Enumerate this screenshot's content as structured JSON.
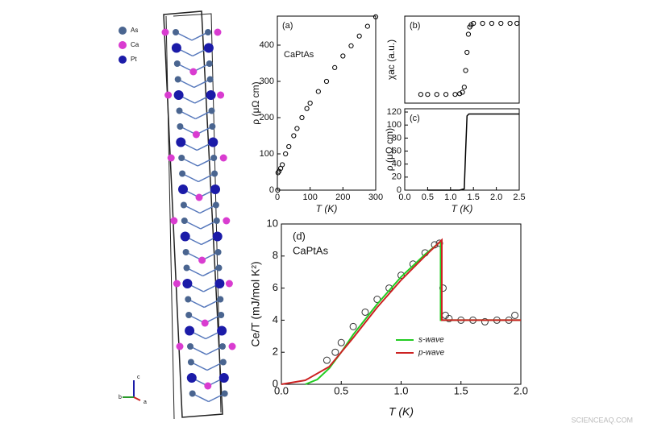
{
  "crystal": {
    "legend": [
      "As",
      "Ca",
      "Pt"
    ],
    "axes": [
      "c",
      "b",
      "a"
    ]
  },
  "watermark": "SCIENCEAQ.COM",
  "chart_data": [
    {
      "type": "scatter",
      "panel_label": "(a)",
      "annotation": "CaPtAs",
      "x_label": "T (K)",
      "y_label": "ρ (μΩ cm)",
      "color": "#000000",
      "x": [
        1,
        2,
        5,
        10,
        15,
        25,
        35,
        50,
        60,
        75,
        90,
        100,
        125,
        150,
        175,
        200,
        225,
        250,
        275,
        300
      ],
      "values": [
        0,
        48,
        52,
        60,
        70,
        100,
        120,
        150,
        170,
        200,
        225,
        240,
        272,
        300,
        338,
        370,
        398,
        425,
        452,
        478
      ],
      "xlim": [
        0,
        300
      ],
      "xticks": [
        0,
        100,
        200,
        300
      ],
      "ylim": [
        0,
        480
      ],
      "yticks": [
        0,
        100,
        200,
        300,
        400
      ]
    },
    {
      "type": "scatter",
      "panel_label": "(b)",
      "y_label": "χac (a.u.)",
      "color": "#000000",
      "x": [
        0.35,
        0.5,
        0.7,
        0.9,
        1.1,
        1.2,
        1.26,
        1.3,
        1.33,
        1.36,
        1.39,
        1.42,
        1.45,
        1.5,
        1.7,
        1.9,
        2.1,
        2.3,
        2.45
      ],
      "values": [
        0.02,
        0.02,
        0.02,
        0.02,
        0.02,
        0.03,
        0.05,
        0.12,
        0.35,
        0.6,
        0.85,
        0.95,
        0.98,
        1,
        1,
        1,
        1,
        1,
        1
      ],
      "xlim": [
        0,
        2.5
      ],
      "ylim": [
        -0.1,
        1.1
      ]
    },
    {
      "type": "line",
      "panel_label": "(c)",
      "x_label": "T (K)",
      "y_label": "ρ (μΩ cm)",
      "color": "#000000",
      "x": [
        0.5,
        0.8,
        1.0,
        1.2,
        1.3,
        1.33,
        1.36,
        1.4,
        1.6,
        2.0,
        2.5
      ],
      "values": [
        0,
        0,
        0,
        0,
        2,
        60,
        114,
        117,
        117,
        117,
        117
      ],
      "xlim": [
        0,
        2.5
      ],
      "xticks": [
        {
          "value": 0,
          "label": "0.0"
        },
        0.5,
        {
          "value": 1,
          "label": "1.0"
        },
        1.5,
        {
          "value": 2,
          "label": "2.0"
        },
        2.5
      ],
      "ylim": [
        0,
        125
      ],
      "yticks": [
        0,
        20,
        40,
        60,
        80,
        100,
        120
      ]
    },
    {
      "type": "scatter",
      "panel_label": "(d)",
      "annotation": "CaPtAs",
      "x_label": "T (K)",
      "y_label": "Ce/T (mJ/mol K²)",
      "legend": "lower right",
      "xlim": [
        0,
        2
      ],
      "xticks": [
        {
          "value": 0,
          "label": "0.0"
        },
        0.5,
        {
          "value": 1,
          "label": "1.0"
        },
        1.5,
        {
          "value": 2,
          "label": "2.0"
        }
      ],
      "ylim": [
        0,
        10
      ],
      "yticks": [
        0,
        2,
        4,
        6,
        8,
        10
      ],
      "series": [
        {
          "type": "scatter",
          "color": "#333333",
          "x": [
            0.38,
            0.45,
            0.5,
            0.6,
            0.7,
            0.8,
            0.9,
            1.0,
            1.1,
            1.2,
            1.28,
            1.32,
            1.35,
            1.37,
            1.4,
            1.5,
            1.6,
            1.7,
            1.8,
            1.9,
            1.95
          ],
          "values": [
            1.5,
            2.0,
            2.6,
            3.6,
            4.5,
            5.3,
            6.0,
            6.8,
            7.5,
            8.2,
            8.7,
            8.8,
            6.0,
            4.3,
            4.1,
            4.0,
            4.0,
            3.9,
            4.0,
            4.0,
            4.3
          ]
        },
        {
          "type": "line",
          "name": "s-wave",
          "color": "#22cc22",
          "x": [
            0.2,
            0.3,
            0.4,
            0.5,
            0.6,
            0.8,
            1.0,
            1.2,
            1.33,
            1.33,
            2.0
          ],
          "values": [
            0,
            0.3,
            1.0,
            2.0,
            3.1,
            5.0,
            6.7,
            8.1,
            8.9,
            4.0,
            4.0
          ]
        },
        {
          "type": "line",
          "name": "p-wave",
          "color": "#cc2222",
          "x": [
            0,
            0.2,
            0.4,
            0.6,
            0.8,
            1.0,
            1.2,
            1.34,
            1.34,
            2.0
          ],
          "values": [
            0,
            0.25,
            1.1,
            2.9,
            4.8,
            6.5,
            8.0,
            9.0,
            4.0,
            4.0
          ]
        }
      ]
    }
  ]
}
